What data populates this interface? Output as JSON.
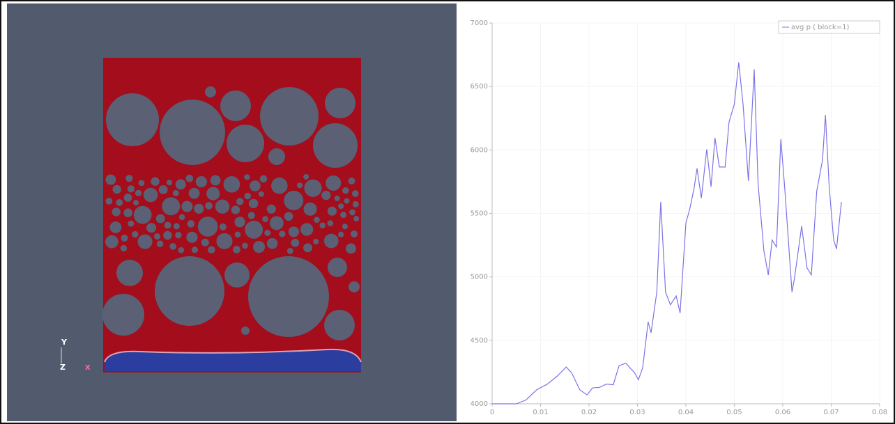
{
  "orientation_axes": [
    "Y",
    "Z",
    "X"
  ],
  "chart_data": {
    "type": "line",
    "x": [
      0,
      0.005,
      0.007,
      0.0092,
      0.0114,
      0.0135,
      0.0153,
      0.0164,
      0.0181,
      0.0196,
      0.0207,
      0.0222,
      0.0236,
      0.025,
      0.0262,
      0.0276,
      0.0294,
      0.0302,
      0.0311,
      0.0322,
      0.0328,
      0.034,
      0.0348,
      0.0358,
      0.0368,
      0.038,
      0.0388,
      0.04,
      0.0408,
      0.0417,
      0.0423,
      0.0432,
      0.0443,
      0.0452,
      0.046,
      0.0469,
      0.0481,
      0.0489,
      0.05,
      0.0509,
      0.0518,
      0.0529,
      0.0541,
      0.0549,
      0.0561,
      0.057,
      0.0578,
      0.0587,
      0.0596,
      0.0604,
      0.0619,
      0.0624,
      0.0639,
      0.065,
      0.0659,
      0.067,
      0.0682,
      0.0688,
      0.0696,
      0.0705,
      0.0711,
      0.0721
    ],
    "series": [
      {
        "name": "avg p ( block=1)",
        "color": "#7b73e6",
        "values": [
          4000,
          4000,
          4030,
          4110,
          4155,
          4220,
          4290,
          4245,
          4110,
          4070,
          4125,
          4130,
          4155,
          4150,
          4300,
          4320,
          4245,
          4190,
          4285,
          4645,
          4560,
          4880,
          5590,
          4880,
          4780,
          4850,
          4715,
          5425,
          5535,
          5700,
          5855,
          5620,
          6005,
          5710,
          6095,
          5865,
          5865,
          6220,
          6360,
          6690,
          6360,
          5755,
          6635,
          5730,
          5205,
          5015,
          5290,
          5235,
          6085,
          5700,
          4880,
          4985,
          5400,
          5070,
          5015,
          5675,
          5920,
          6275,
          5700,
          5290,
          5220,
          5590
        ]
      }
    ],
    "xlim": [
      0,
      0.08
    ],
    "xticks": [
      0,
      0.01,
      0.02,
      0.03,
      0.04,
      0.05,
      0.06,
      0.07,
      0.08
    ],
    "ylim": [
      4000,
      7000
    ],
    "yticks": [
      4000,
      4500,
      5000,
      5500,
      6000,
      6500,
      7000
    ],
    "grid": true,
    "legend": "upper right"
  }
}
